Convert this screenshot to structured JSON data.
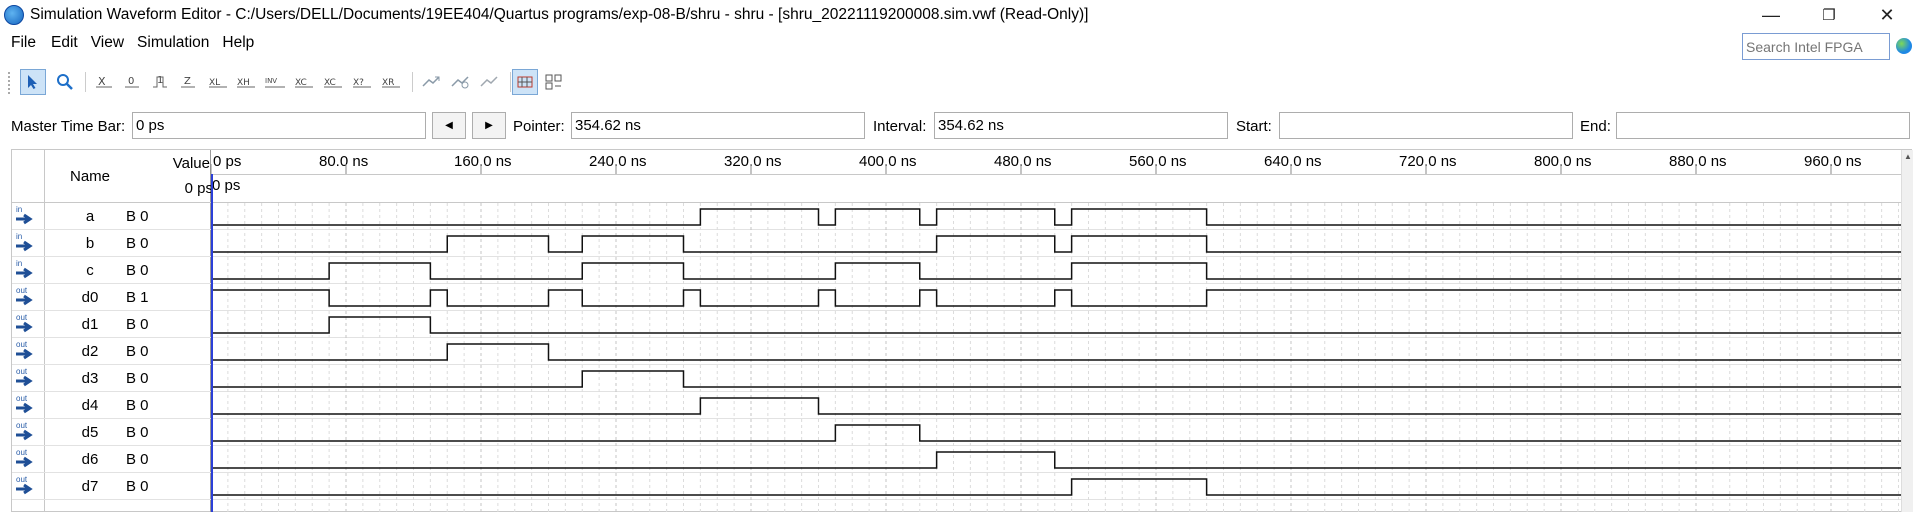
{
  "window": {
    "title": "Simulation Waveform Editor - C:/Users/DELL/Documents/19EE404/Quartus programs/exp-08-B/shru - shru - [shru_20221119200008.sim.vwf (Read-Only)]",
    "minimize": "—",
    "maximize": "❐",
    "close": "✕"
  },
  "menu": [
    "File",
    "Edit",
    "View",
    "Simulation",
    "Help"
  ],
  "search": {
    "placeholder": "Search Intel FPGA"
  },
  "toolbar": {
    "icons": [
      "selection-tool-icon",
      "zoom-tool-icon",
      "force-unknown-icon",
      "force-low-icon",
      "force-high-icon",
      "force-hi-z-icon",
      "force-weak-low-icon",
      "force-weak-high-icon",
      "invert-icon",
      "count-value-icon",
      "clock-icon",
      "arbitrary-value-icon",
      "random-value-icon",
      "run-functional-simulation-icon",
      "run-timing-simulation-icon",
      "generate-netlist-icon",
      "snap-to-grid-icon",
      "sort-icon"
    ],
    "glyphs": [
      "➤",
      "🔍",
      "X̲",
      "0̲",
      "1̲",
      "Z̲",
      "XL",
      "XH",
      "INV",
      "XC",
      "X?",
      "XR",
      "⇶",
      "⇶",
      "⇶",
      "▦",
      "▩"
    ]
  },
  "timebar": {
    "master_label": "Master Time Bar:",
    "master_value": "0 ps",
    "prev": "◀",
    "next": "▶",
    "pointer_label": "Pointer:",
    "pointer_value": "354.62 ns",
    "interval_label": "Interval:",
    "interval_value": "354.62 ns",
    "start_label": "Start:",
    "start_value": "",
    "end_label": "End:",
    "end_value": ""
  },
  "grid": {
    "name_header": "Name",
    "value_header": "Value",
    "value_at": "0 ps",
    "cursor_label": "0 ps",
    "ticks": [
      "0 ps",
      "80.0 ns",
      "160.0 ns",
      "240.0 ns",
      "320.0 ns",
      "400.0 ns",
      "480.0 ns",
      "560.0 ns",
      "640.0 ns",
      "720.0 ns",
      "800.0 ns",
      "880.0 ns",
      "960.0 ns"
    ]
  },
  "signals": [
    {
      "dir": "in",
      "name": "a",
      "value": "B 0",
      "edges_ns": [
        290,
        360,
        370,
        420,
        430,
        500,
        510,
        590
      ],
      "start": 0
    },
    {
      "dir": "in",
      "name": "b",
      "value": "B 0",
      "edges_ns": [
        140,
        200,
        220,
        280,
        430,
        500,
        510,
        590
      ],
      "start": 0
    },
    {
      "dir": "in",
      "name": "c",
      "value": "B 0",
      "edges_ns": [
        70,
        130,
        220,
        280,
        370,
        420,
        510,
        590
      ],
      "start": 0
    },
    {
      "dir": "out",
      "name": "d0",
      "value": "B 1",
      "edges_ns": [
        70,
        130,
        140,
        200,
        220,
        280,
        290,
        360,
        370,
        420,
        430,
        500,
        510,
        590
      ],
      "start": 1
    },
    {
      "dir": "out",
      "name": "d1",
      "value": "B 0",
      "edges_ns": [
        70,
        130
      ],
      "start": 0
    },
    {
      "dir": "out",
      "name": "d2",
      "value": "B 0",
      "edges_ns": [
        140,
        200
      ],
      "start": 0
    },
    {
      "dir": "out",
      "name": "d3",
      "value": "B 0",
      "edges_ns": [
        220,
        280
      ],
      "start": 0
    },
    {
      "dir": "out",
      "name": "d4",
      "value": "B 0",
      "edges_ns": [
        290,
        360
      ],
      "start": 0
    },
    {
      "dir": "out",
      "name": "d5",
      "value": "B 0",
      "edges_ns": [
        370,
        420
      ],
      "start": 0
    },
    {
      "dir": "out",
      "name": "d6",
      "value": "B 0",
      "edges_ns": [
        430,
        500
      ],
      "start": 0
    },
    {
      "dir": "out",
      "name": "d7",
      "value": "B 0",
      "edges_ns": [
        510,
        590
      ],
      "start": 0
    }
  ]
}
